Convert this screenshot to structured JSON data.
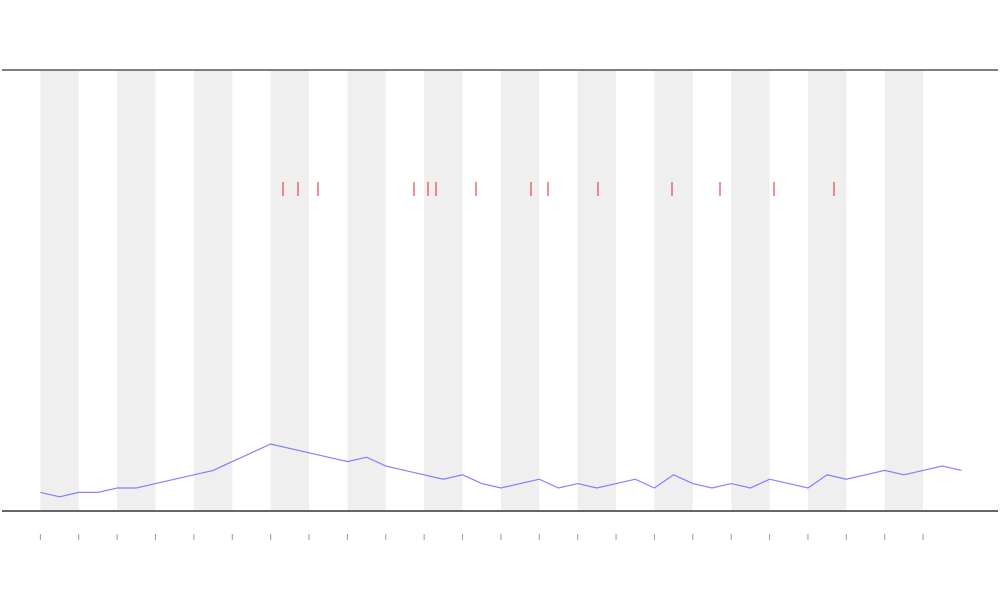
{
  "chart_data": {
    "type": "line",
    "x": [
      1,
      1.5,
      2,
      2.5,
      3,
      3.5,
      4,
      4.5,
      5,
      5.5,
      6,
      6.5,
      7,
      7.5,
      8,
      8.5,
      9,
      9.5,
      10,
      10.5,
      11,
      11.5,
      12,
      12.5,
      13,
      13.5,
      14,
      14.5,
      15,
      15.5,
      16,
      16.5,
      17,
      17.5,
      18,
      18.5,
      19,
      19.5,
      20,
      20.5,
      21,
      21.5,
      22,
      22.5,
      23,
      23.5,
      24,
      24.5,
      25
    ],
    "series": [
      {
        "color": "#5a5aff",
        "values": [
          4,
          3,
          4,
          4,
          5,
          5,
          6,
          7,
          8,
          9,
          11,
          13,
          15,
          14,
          13,
          12,
          11,
          12,
          10,
          9,
          8,
          7,
          8,
          6,
          5,
          6,
          7,
          5,
          6,
          5,
          6,
          7,
          5,
          8,
          6,
          5,
          6,
          5,
          7,
          6,
          5,
          8,
          7,
          8,
          9,
          8,
          9,
          10,
          9
        ]
      }
    ],
    "xlim": [
      0,
      25.9
    ],
    "ylim": [
      0,
      100
    ],
    "xticks": [
      1,
      2,
      3,
      4,
      5,
      6,
      7,
      8,
      9,
      10,
      11,
      12,
      13,
      14,
      15,
      16,
      17,
      18,
      19,
      20,
      21,
      22,
      23,
      24
    ]
  }
}
